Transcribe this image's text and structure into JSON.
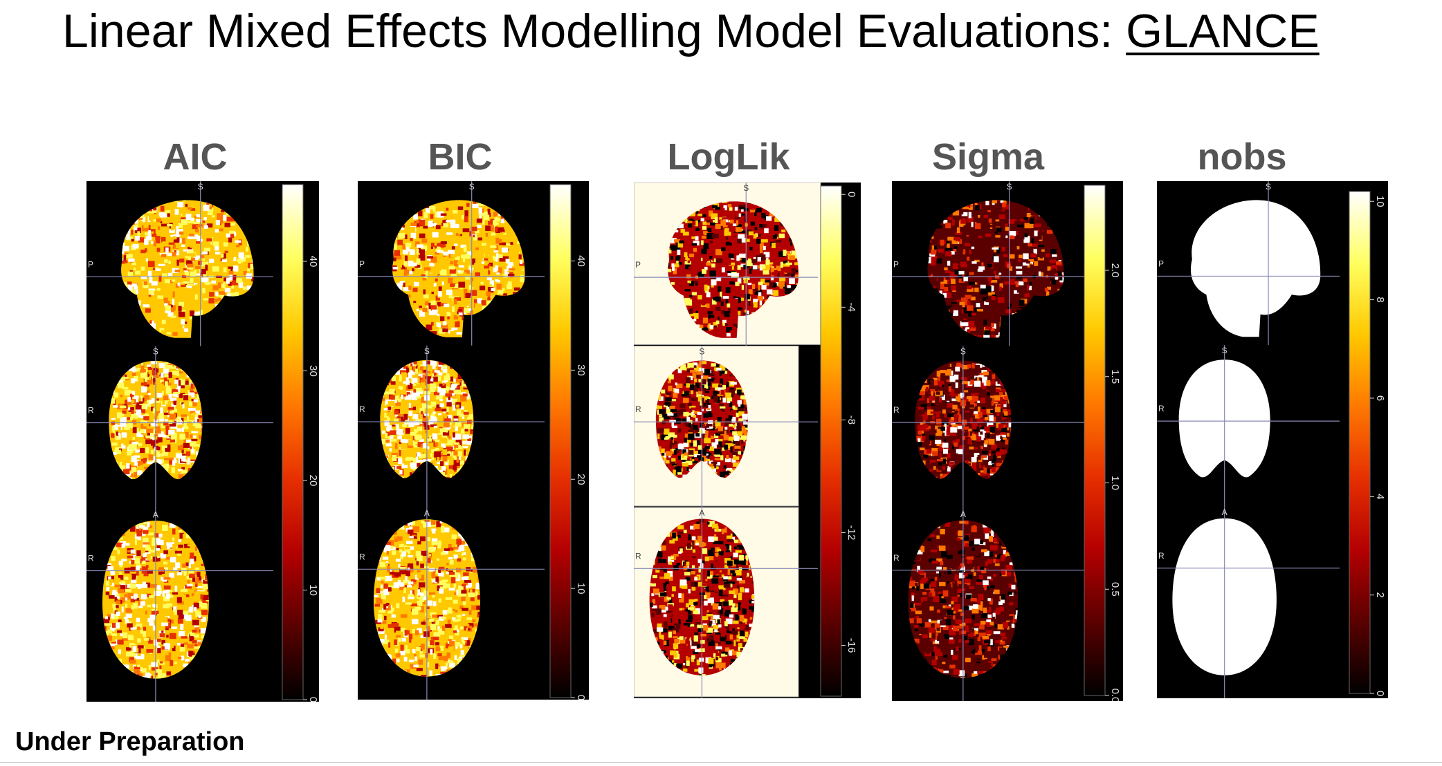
{
  "title": {
    "prefix": "Linear Mixed Effects Modelling Model Evaluations: ",
    "emphasis": "GLANCE"
  },
  "footer": "Under Preparation",
  "colors": {
    "heat": [
      "#000000",
      "#5a0000",
      "#b40000",
      "#e63000",
      "#ff7800",
      "#ffc800",
      "#ffff60",
      "#ffffff"
    ],
    "crosshair": "#8a8ab8",
    "light_background": "#fffbe6"
  },
  "orientation_labels": {
    "sagittal": [
      "S",
      "P"
    ],
    "coronal": [
      "S",
      "R"
    ],
    "axial": [
      "A",
      "R"
    ]
  },
  "panels": [
    {
      "id": "aic",
      "title": "AIC",
      "map": "high",
      "background": "black",
      "colorbar_ticks": [
        "0",
        "10",
        "20",
        "30",
        "40"
      ],
      "colorbar_range": [
        0,
        47
      ]
    },
    {
      "id": "bic",
      "title": "BIC",
      "map": "high",
      "background": "black",
      "colorbar_ticks": [
        "0",
        "10",
        "20",
        "30",
        "40"
      ],
      "colorbar_range": [
        0,
        47
      ]
    },
    {
      "id": "loglik",
      "title": "LogLik",
      "map": "mixed",
      "background": "light",
      "colorbar_ticks": [
        "0",
        "-4",
        "-8",
        "-12",
        "-16"
      ],
      "colorbar_range": [
        -17.8,
        0.3
      ]
    },
    {
      "id": "sigma",
      "title": "Sigma",
      "map": "low",
      "background": "black",
      "colorbar_ticks": [
        "0.0",
        "0.5",
        "1.0",
        "1.5",
        "2.0"
      ],
      "colorbar_range": [
        0,
        2.4
      ]
    },
    {
      "id": "nobs",
      "title": "nobs",
      "map": "uniform",
      "background": "black",
      "colorbar_ticks": [
        "0",
        "2",
        "4",
        "6",
        "8",
        "10"
      ],
      "colorbar_range": [
        0,
        10.2
      ]
    }
  ]
}
